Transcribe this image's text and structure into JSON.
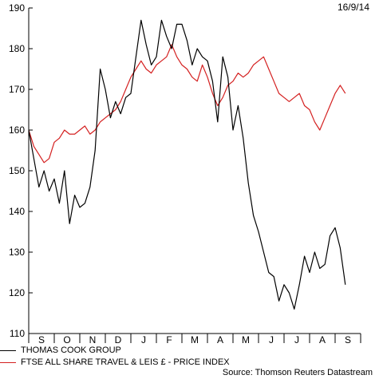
{
  "date_label": "16/9/14",
  "source": "Source: Thomson Reuters Datastream",
  "colors": {
    "series1": "#000000",
    "series2": "#d42020",
    "axis": "#000000"
  },
  "chart_data": {
    "type": "line",
    "title": "",
    "xlabel": "",
    "ylabel": "",
    "ylim": [
      110,
      190
    ],
    "yticks": [
      110,
      120,
      130,
      140,
      150,
      160,
      170,
      180,
      190
    ],
    "grid": false,
    "legend_placement": "bottom-left",
    "x_categories": [
      "S",
      "O",
      "N",
      "D",
      "J",
      "F",
      "M",
      "A",
      "M",
      "J",
      "J",
      "A",
      "S"
    ],
    "series": [
      {
        "name": "THOMAS COOK GROUP",
        "color": "#000000",
        "x": [
          0,
          0.2,
          0.4,
          0.6,
          0.8,
          1.0,
          1.2,
          1.4,
          1.6,
          1.8,
          2.0,
          2.2,
          2.4,
          2.6,
          2.8,
          3.0,
          3.2,
          3.4,
          3.6,
          3.8,
          4.0,
          4.2,
          4.4,
          4.6,
          4.8,
          5.0,
          5.2,
          5.4,
          5.6,
          5.8,
          6.0,
          6.2,
          6.4,
          6.6,
          6.8,
          7.0,
          7.2,
          7.4,
          7.6,
          7.8,
          8.0,
          8.2,
          8.4,
          8.6,
          8.8,
          9.0,
          9.2,
          9.4,
          9.6,
          9.8,
          10.0,
          10.2,
          10.4,
          10.6,
          10.8,
          11.0,
          11.2,
          11.4,
          11.6,
          11.8,
          12.0,
          12.2,
          12.4
        ],
        "values": [
          160,
          153,
          146,
          150,
          145,
          148,
          142,
          150,
          137,
          144,
          141,
          142,
          146,
          155,
          175,
          170,
          163,
          167,
          164,
          168,
          169,
          178,
          187,
          181,
          176,
          178,
          187,
          183,
          180,
          186,
          186,
          182,
          176,
          180,
          178,
          177,
          172,
          162,
          178,
          173,
          160,
          166,
          158,
          147,
          139,
          135,
          130,
          125,
          124,
          118,
          122,
          120,
          116,
          122,
          129,
          125,
          130,
          126,
          127,
          134,
          136,
          131,
          122
        ]
      },
      {
        "name": "FTSE ALL SHARE TRAVEL & LEIS £ - PRICE INDEX",
        "color": "#d42020",
        "x": [
          0,
          0.2,
          0.4,
          0.6,
          0.8,
          1.0,
          1.2,
          1.4,
          1.6,
          1.8,
          2.0,
          2.2,
          2.4,
          2.6,
          2.8,
          3.0,
          3.2,
          3.4,
          3.6,
          3.8,
          4.0,
          4.2,
          4.4,
          4.6,
          4.8,
          5.0,
          5.2,
          5.4,
          5.6,
          5.8,
          6.0,
          6.2,
          6.4,
          6.6,
          6.8,
          7.0,
          7.2,
          7.4,
          7.6,
          7.8,
          8.0,
          8.2,
          8.4,
          8.6,
          8.8,
          9.0,
          9.2,
          9.4,
          9.6,
          9.8,
          10.0,
          10.2,
          10.4,
          10.6,
          10.8,
          11.0,
          11.2,
          11.4,
          11.6,
          11.8,
          12.0,
          12.2,
          12.4
        ],
        "values": [
          160,
          156,
          154,
          152,
          153,
          157,
          158,
          160,
          159,
          159,
          160,
          161,
          159,
          160,
          162,
          163,
          164,
          165,
          167,
          170,
          173,
          175,
          177,
          175,
          174,
          176,
          177,
          178,
          181,
          178,
          176,
          175,
          173,
          172,
          176,
          173,
          169,
          166,
          168,
          171,
          172,
          174,
          173,
          174,
          176,
          177,
          178,
          175,
          172,
          169,
          168,
          167,
          168,
          169,
          166,
          165,
          162,
          160,
          163,
          166,
          169,
          171,
          169
        ]
      }
    ]
  }
}
